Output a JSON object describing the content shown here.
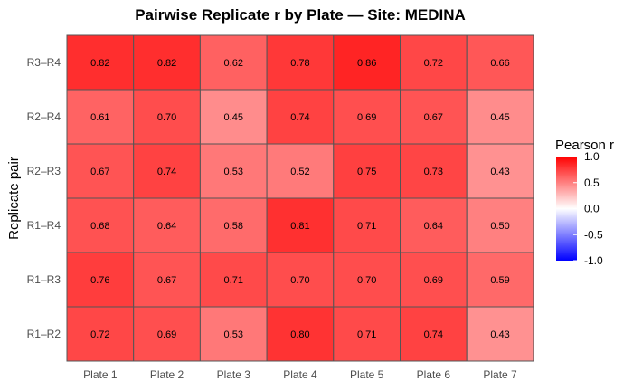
{
  "chart_data": {
    "type": "heatmap",
    "title": "Pairwise Replicate r by Plate — Site: MEDINA",
    "xlabel": "",
    "ylabel": "Replicate pair",
    "x_categories": [
      "Plate 1",
      "Plate 2",
      "Plate 3",
      "Plate 4",
      "Plate 5",
      "Plate 6",
      "Plate 7"
    ],
    "y_categories": [
      "R3–R4",
      "R2–R4",
      "R2–R3",
      "R1–R4",
      "R1–R3",
      "R1–R2"
    ],
    "values": [
      [
        0.82,
        0.82,
        0.62,
        0.78,
        0.86,
        0.72,
        0.66
      ],
      [
        0.61,
        0.7,
        0.45,
        0.74,
        0.69,
        0.67,
        0.45
      ],
      [
        0.67,
        0.74,
        0.53,
        0.52,
        0.75,
        0.73,
        0.43
      ],
      [
        0.68,
        0.64,
        0.58,
        0.81,
        0.71,
        0.64,
        0.5
      ],
      [
        0.76,
        0.67,
        0.71,
        0.7,
        0.7,
        0.69,
        0.59
      ],
      [
        0.72,
        0.69,
        0.53,
        0.8,
        0.71,
        0.74,
        0.43
      ]
    ],
    "value_labels": [
      [
        "0.82",
        "0.82",
        "0.62",
        "0.78",
        "0.86",
        "0.72",
        "0.66"
      ],
      [
        "0.61",
        "0.70",
        "0.45",
        "0.74",
        "0.69",
        "0.67",
        "0.45"
      ],
      [
        "0.67",
        "0.74",
        "0.53",
        "0.52",
        "0.75",
        "0.73",
        "0.43"
      ],
      [
        "0.68",
        "0.64",
        "0.58",
        "0.81",
        "0.71",
        "0.64",
        "0.50"
      ],
      [
        "0.76",
        "0.67",
        "0.71",
        "0.70",
        "0.70",
        "0.69",
        "0.59"
      ],
      [
        "0.72",
        "0.69",
        "0.53",
        "0.80",
        "0.71",
        "0.74",
        "0.43"
      ]
    ],
    "legend": {
      "title": "Pearson r",
      "position": "right",
      "range": [
        -1.0,
        1.0
      ],
      "ticks": [
        1.0,
        0.5,
        0.0,
        -0.5,
        -1.0
      ],
      "tick_labels": [
        "1.0",
        "0.5",
        "0.0",
        "-0.5",
        "-1.0"
      ],
      "colors": {
        "low": "#0000ff",
        "mid": "#ffffff",
        "high": "#ff0000"
      }
    },
    "cell_border_color": "#555555",
    "grid": false
  }
}
